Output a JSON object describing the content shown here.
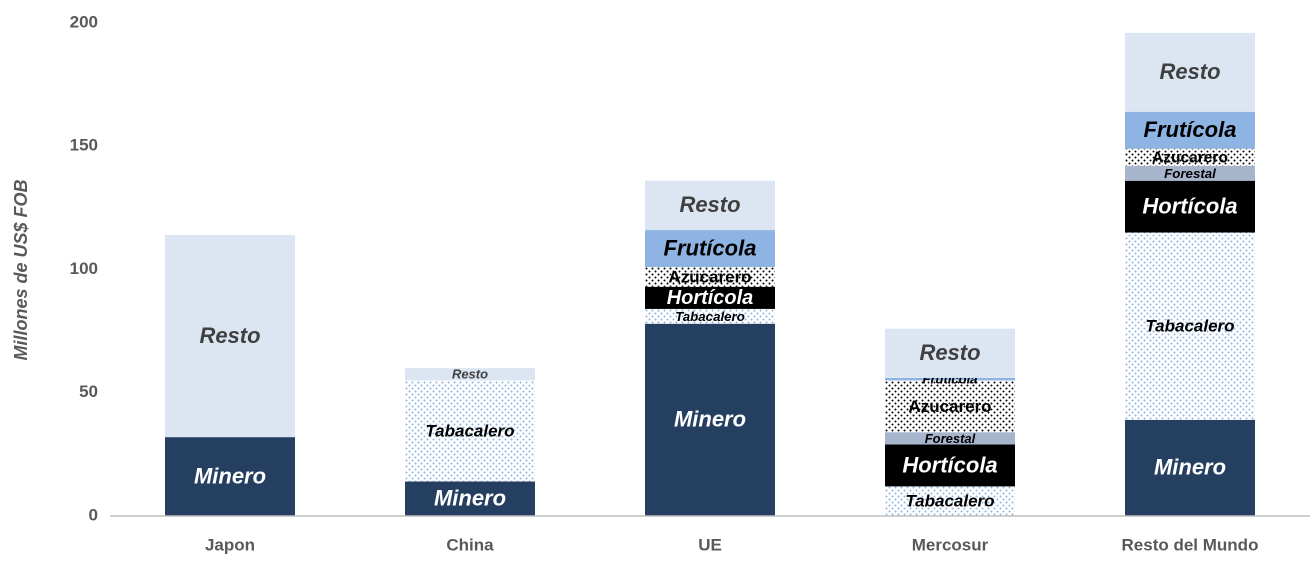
{
  "chart_data": {
    "type": "stacked_bar",
    "y_label": "Millones de US$ FOB",
    "categories": [
      "Japon",
      "China",
      "UE",
      "Mercosur",
      "Resto del Mundo"
    ],
    "series": [
      {
        "name": "Minero",
        "color": "#243f60",
        "values": [
          32,
          14,
          78,
          0,
          39
        ]
      },
      {
        "name": "Tabacalero",
        "color": "#8eb4e3",
        "pattern": "dots",
        "values": [
          0,
          41,
          6,
          12,
          76
        ]
      },
      {
        "name": "Hortícola",
        "color": "#000000",
        "values": [
          0,
          0,
          9,
          17,
          21
        ]
      },
      {
        "name": "Forestal",
        "color": "#a6b4cc",
        "values": [
          0,
          0,
          0,
          5,
          6
        ]
      },
      {
        "name": "Azucarero",
        "color": "#000000",
        "pattern": "dots",
        "values": [
          0,
          0,
          8,
          21,
          7
        ]
      },
      {
        "name": "Frutícola",
        "color": "#8eb4e3",
        "values": [
          0,
          0,
          15,
          1,
          15
        ]
      },
      {
        "name": "Resto",
        "color": "#dce6f2",
        "values": [
          82,
          5,
          20,
          20,
          32
        ]
      }
    ],
    "ylim": [
      0,
      200
    ],
    "yticks": [
      0,
      50,
      100,
      150,
      200
    ],
    "grid": false
  }
}
